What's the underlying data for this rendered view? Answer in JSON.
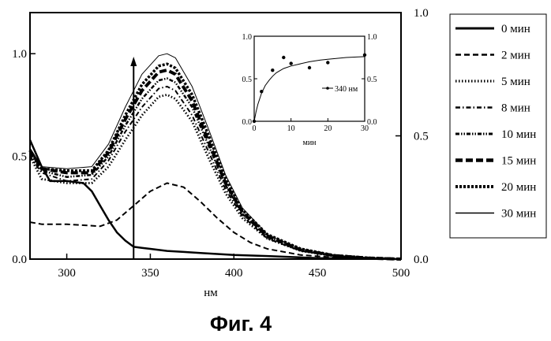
{
  "figure": {
    "caption": "Фиг.  4"
  },
  "chart_data": [
    {
      "type": "line",
      "name": "main-spectra",
      "title": "",
      "xlabel": "нм",
      "ylabel": "",
      "xlim": [
        278,
        500
      ],
      "ylim": [
        0,
        1.2
      ],
      "y2lim": [
        0,
        1.0
      ],
      "xticks": [
        300,
        350,
        400,
        450,
        500
      ],
      "yticks": [
        0.0,
        0.5,
        1.0
      ],
      "y2ticks": [
        0.0,
        0.5,
        1.0
      ],
      "yticklabels": [
        "0.0",
        "0.5",
        "1.0"
      ],
      "y2ticklabels": [
        "0.0",
        "0.5",
        "1.0"
      ],
      "marker_line": {
        "x": 340,
        "y_from": 0.0,
        "y_to": 0.97
      },
      "series": [
        {
          "name": "0 мин",
          "style": "solid-thick",
          "x": [
            278,
            285,
            290,
            300,
            310,
            315,
            320,
            325,
            330,
            335,
            340,
            345,
            350,
            360,
            370,
            380,
            400,
            420,
            450,
            500
          ],
          "y": [
            0.58,
            0.45,
            0.38,
            0.38,
            0.37,
            0.33,
            0.26,
            0.19,
            0.13,
            0.09,
            0.06,
            0.055,
            0.05,
            0.04,
            0.035,
            0.03,
            0.02,
            0.015,
            0.005,
            0.0
          ]
        },
        {
          "name": "2 мин",
          "style": "dash",
          "x": [
            278,
            285,
            300,
            320,
            330,
            340,
            350,
            360,
            370,
            380,
            390,
            400,
            410,
            420,
            440,
            460,
            480,
            500
          ],
          "y": [
            0.18,
            0.17,
            0.17,
            0.16,
            0.19,
            0.26,
            0.33,
            0.37,
            0.35,
            0.28,
            0.2,
            0.13,
            0.08,
            0.05,
            0.02,
            0.008,
            0.003,
            0.0
          ]
        },
        {
          "name": "5 мин",
          "style": "dot",
          "x": [
            278,
            285,
            300,
            315,
            325,
            335,
            345,
            355,
            360,
            365,
            375,
            385,
            395,
            405,
            420,
            440,
            460,
            480,
            500
          ],
          "y": [
            0.5,
            0.39,
            0.37,
            0.37,
            0.45,
            0.58,
            0.7,
            0.79,
            0.8,
            0.78,
            0.67,
            0.49,
            0.32,
            0.2,
            0.1,
            0.04,
            0.015,
            0.005,
            0.0
          ]
        },
        {
          "name": "8 мин",
          "style": "dashdot",
          "x": [
            278,
            285,
            300,
            315,
            325,
            335,
            345,
            355,
            360,
            365,
            375,
            385,
            395,
            405,
            420,
            440,
            460,
            480,
            500
          ],
          "y": [
            0.5,
            0.42,
            0.38,
            0.39,
            0.48,
            0.62,
            0.74,
            0.83,
            0.84,
            0.82,
            0.7,
            0.52,
            0.34,
            0.21,
            0.1,
            0.04,
            0.015,
            0.005,
            0.0
          ]
        },
        {
          "name": "10 мин",
          "style": "dashdotdot",
          "x": [
            278,
            285,
            300,
            315,
            325,
            335,
            345,
            355,
            360,
            365,
            375,
            385,
            395,
            405,
            420,
            440,
            460,
            480,
            500
          ],
          "y": [
            0.51,
            0.43,
            0.4,
            0.41,
            0.5,
            0.65,
            0.78,
            0.87,
            0.88,
            0.86,
            0.74,
            0.55,
            0.36,
            0.22,
            0.11,
            0.045,
            0.017,
            0.005,
            0.0
          ]
        },
        {
          "name": "15 мин",
          "style": "bigdash",
          "x": [
            278,
            285,
            300,
            315,
            325,
            335,
            345,
            355,
            360,
            365,
            375,
            385,
            395,
            405,
            420,
            440,
            460,
            480,
            500
          ],
          "y": [
            0.53,
            0.44,
            0.42,
            0.42,
            0.52,
            0.68,
            0.82,
            0.91,
            0.92,
            0.9,
            0.77,
            0.57,
            0.37,
            0.23,
            0.11,
            0.045,
            0.017,
            0.005,
            0.0
          ]
        },
        {
          "name": "20 мин",
          "style": "smalldash",
          "x": [
            278,
            285,
            300,
            315,
            325,
            335,
            345,
            355,
            360,
            365,
            375,
            385,
            395,
            405,
            420,
            440,
            460,
            480,
            500
          ],
          "y": [
            0.53,
            0.44,
            0.43,
            0.43,
            0.53,
            0.7,
            0.85,
            0.94,
            0.95,
            0.93,
            0.8,
            0.6,
            0.39,
            0.24,
            0.12,
            0.05,
            0.018,
            0.006,
            0.0
          ]
        },
        {
          "name": "30 мин",
          "style": "solid-thin",
          "x": [
            278,
            285,
            300,
            315,
            325,
            335,
            345,
            355,
            360,
            365,
            375,
            385,
            395,
            405,
            420,
            440,
            460,
            480,
            500
          ],
          "y": [
            0.54,
            0.45,
            0.44,
            0.45,
            0.56,
            0.74,
            0.9,
            0.99,
            1.0,
            0.98,
            0.84,
            0.63,
            0.41,
            0.25,
            0.12,
            0.05,
            0.018,
            0.006,
            0.0
          ]
        }
      ]
    },
    {
      "type": "scatter",
      "name": "inset-kinetics",
      "xlabel": "мин",
      "xlim": [
        0,
        30
      ],
      "ylim": [
        0,
        1.0
      ],
      "y2lim": [
        0,
        1.0
      ],
      "xticks": [
        0,
        10,
        20,
        30
      ],
      "yticks": [
        0.0,
        0.5,
        1.0
      ],
      "y2ticks": [
        0.0,
        0.5,
        1.0
      ],
      "yticklabels": [
        "0.0",
        "0.5",
        "1.0"
      ],
      "y2ticklabels": [
        "0.0",
        "0.5",
        "1.0"
      ],
      "legend": "340 нм",
      "points": {
        "x": [
          0,
          2,
          5,
          8,
          10,
          15,
          20,
          30
        ],
        "y": [
          0.0,
          0.35,
          0.6,
          0.75,
          0.68,
          0.63,
          0.69,
          0.78
        ]
      },
      "fit": {
        "x": [
          0,
          0.5,
          1,
          2,
          3,
          4,
          5,
          6,
          8,
          10,
          12,
          15,
          18,
          20,
          25,
          30
        ],
        "y": [
          0.0,
          0.11,
          0.2,
          0.33,
          0.42,
          0.48,
          0.53,
          0.57,
          0.62,
          0.65,
          0.67,
          0.7,
          0.72,
          0.73,
          0.75,
          0.76
        ]
      }
    }
  ]
}
